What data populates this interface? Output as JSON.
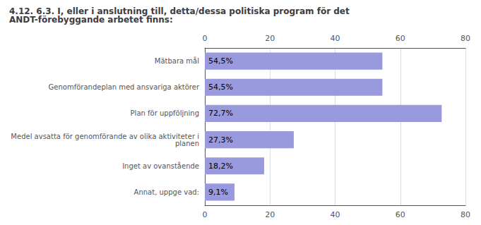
{
  "chart_data": {
    "type": "bar",
    "orientation": "horizontal",
    "title": "4.12. 6.3. I, eller i anslutning till, detta/dessa politiska program för det ANDT-förebyggande arbetet finns:",
    "categories": [
      "Annat, uppge vad:",
      "Inget av ovanstående",
      "Medel avsatta för genomförande av olika aktiviteter i planen",
      "Plan för uppföljning",
      "Genomförandeplan med ansvariga aktörer",
      "Mätbara mål"
    ],
    "values": [
      9.1,
      18.2,
      27.3,
      72.7,
      54.5,
      54.5
    ],
    "value_labels": [
      "9,1%",
      "18,2%",
      "27,3%",
      "72,7%",
      "54,5%",
      "54,5%"
    ],
    "data_labels": true,
    "color": "#9999dd",
    "xlim": [
      0,
      80
    ],
    "xticks": [
      0,
      20,
      40,
      60,
      80
    ],
    "grid": true
  }
}
